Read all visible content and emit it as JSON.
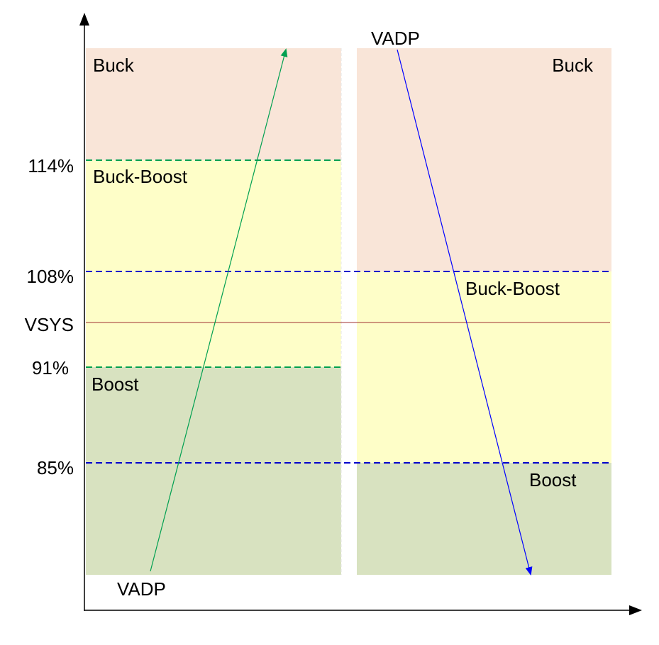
{
  "colors": {
    "buck_region": "#F9E5D8",
    "buckboost_region": "#FEFEC8",
    "boost_region": "#D8E2C0",
    "rising_threshold_line": "#00A050",
    "falling_threshold_line": "#0000CC",
    "vsys_line": "#A03030",
    "rising_arrow": "#00A050",
    "falling_arrow": "#0000FF",
    "axis": "#000000"
  },
  "axis_labels": {
    "th_114": "114%",
    "th_108": "108%",
    "vsys": "VSYS",
    "th_91": "91%",
    "th_85": "85%"
  },
  "left_panel": {
    "buck": "Buck",
    "buck_boost": "Buck-Boost",
    "boost": "Boost",
    "arrow_label": "VADP",
    "direction": "rising"
  },
  "right_panel": {
    "buck": "Buck",
    "buck_boost": "Buck-Boost",
    "boost": "Boost",
    "arrow_label": "VADP",
    "direction": "falling"
  }
}
